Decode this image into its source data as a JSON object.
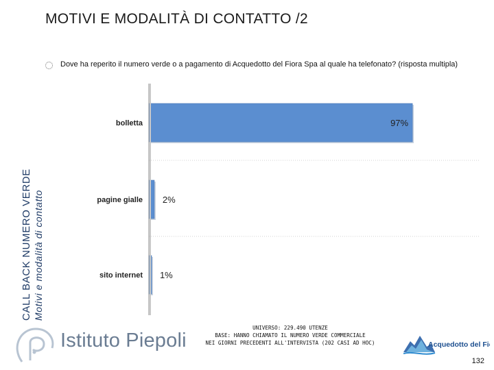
{
  "header": {
    "title": "MOTIVI E MODALITÀ DI CONTATTO /2"
  },
  "sidebar": {
    "line1": "CALL BACK NUMERO VERDE",
    "line2": "Motivi e modalità di contatto"
  },
  "question": "Dove ha reperito il numero verde o a pagamento di Acquedotto del Fiora Spa al quale ha telefonato? (risposta multipla)",
  "chart_data": {
    "type": "bar",
    "orientation": "horizontal",
    "categories": [
      "bolletta",
      "pagine gialle",
      "sito internet"
    ],
    "values": [
      97,
      2,
      1
    ],
    "value_labels": [
      "97%",
      "2%",
      "1%"
    ],
    "unit": "%",
    "xlim": [
      0,
      100
    ],
    "bar_color": "#5b8ed0",
    "grid": false
  },
  "footer": {
    "brand": "Istituto Piepoli",
    "universe_lines": [
      "UNIVERSO: 229.490 UTENZE",
      "BASE: HANNO CHIAMATO IL NUMERO VERDE COMMERCIALE",
      "NEI GIORNI PRECEDENTI ALL'INTERVISTA (202 CASI AD HOC)"
    ],
    "client_logo": "Acquedotto del Fiora",
    "page_number": "132"
  },
  "colors": {
    "title": "#1a1a1a",
    "sidebar": "#1f3b66",
    "bar": "#5b8ed0",
    "brand": "#6a7c92"
  }
}
